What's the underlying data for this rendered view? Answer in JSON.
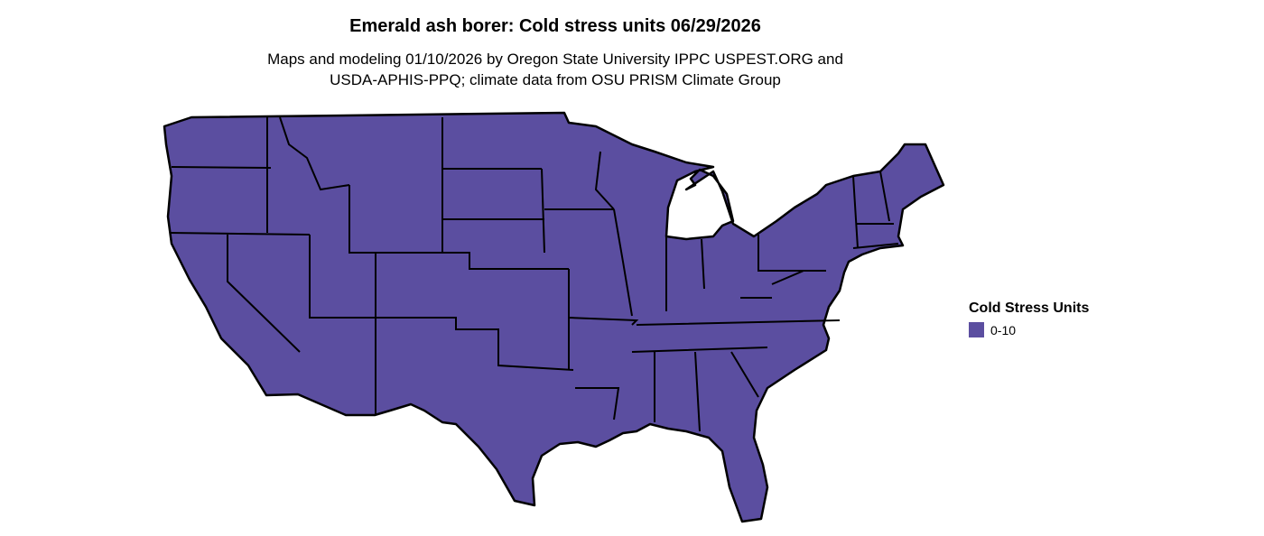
{
  "title": "Emerald ash borer: Cold stress units 06/29/2026",
  "subtitle_line1": "Maps and modeling 01/10/2026 by Oregon State University IPPC USPEST.ORG and",
  "subtitle_line2": "USDA-APHIS-PPQ; climate data from OSU PRISM Climate Group",
  "legend": {
    "title": "Cold Stress Units",
    "items": [
      {
        "label": "0-10",
        "color": "#5b4ea0"
      }
    ]
  },
  "map": {
    "region": "Contiguous United States",
    "fill_color": "#5b4ea0",
    "border_color": "#000000"
  }
}
